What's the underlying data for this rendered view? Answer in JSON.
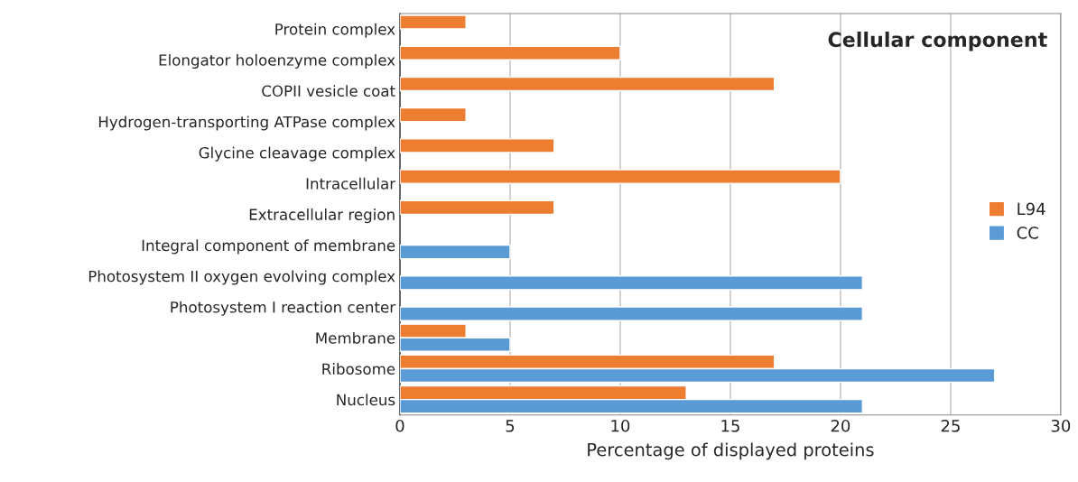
{
  "chart_data": {
    "type": "bar",
    "orientation": "horizontal",
    "title": "Cellular component",
    "xlabel": "Percentage of displayed proteins",
    "categories": [
      "Protein complex",
      "Elongator holoenzyme complex",
      "COPII vesicle coat",
      "Hydrogen-transporting ATPase complex",
      "Glycine cleavage complex",
      "Intracellular",
      "Extracellular region",
      "Integral component of membrane",
      "Photosystem II oxygen evolving complex",
      "Photosystem I reaction center",
      "Membrane",
      "Ribosome",
      "Nucleus"
    ],
    "series": [
      {
        "name": "L94",
        "color": "#ed7d31",
        "values": [
          3,
          10,
          17,
          3,
          7,
          20,
          7,
          null,
          null,
          null,
          3,
          17,
          13
        ]
      },
      {
        "name": "CC",
        "color": "#5b9bd5",
        "values": [
          null,
          null,
          null,
          null,
          null,
          null,
          null,
          5,
          21,
          21,
          5,
          27,
          21
        ]
      }
    ],
    "xlim": [
      0,
      30
    ],
    "xticks": [
      0,
      5,
      10,
      15,
      20,
      25,
      30
    ],
    "grid": "x",
    "legend": "right"
  }
}
